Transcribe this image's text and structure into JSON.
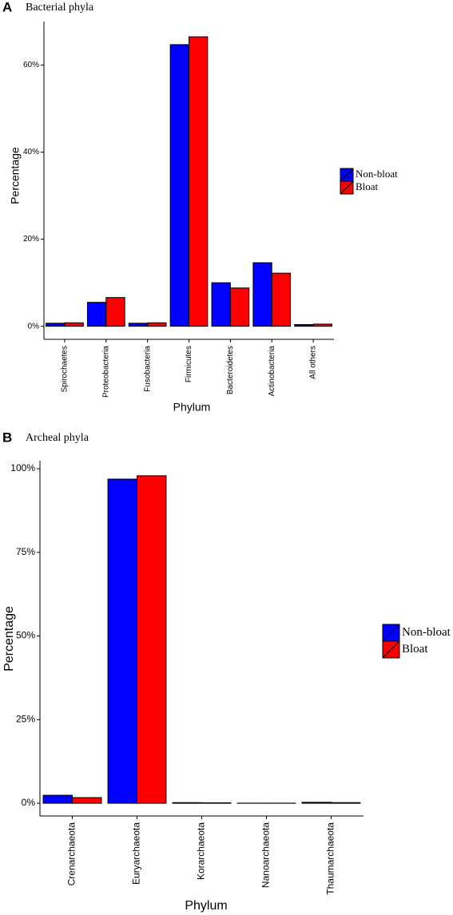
{
  "chart_data": [
    {
      "type": "bar",
      "panel": "A",
      "title": "Bacterial phyla",
      "x_label": "Phylum",
      "y_label": "Percentage",
      "categories": [
        "Spirochaetes",
        "Proteobacteria",
        "Fusobacteria",
        "Firmicutes",
        "Bacteroidetes",
        "Actinobacteria",
        "All others"
      ],
      "series": [
        {
          "name": "Non-bloat",
          "color": "#0000ff",
          "values": [
            0.7,
            5.5,
            0.7,
            64.7,
            10.0,
            14.6,
            0.4
          ]
        },
        {
          "name": "Bloat",
          "color": "#ff0000",
          "values": [
            0.8,
            6.6,
            0.8,
            66.5,
            8.8,
            12.2,
            0.5
          ]
        }
      ],
      "ylim": [
        -3,
        70
      ],
      "yticks": [
        {
          "value": 0,
          "label": "0%"
        },
        {
          "value": 20,
          "label": "20%"
        },
        {
          "value": 40,
          "label": "40%"
        },
        {
          "value": 60,
          "label": "60%"
        }
      ],
      "grid": false,
      "legend": "right"
    },
    {
      "type": "bar",
      "panel": "B",
      "title": "Archeal phyla",
      "x_label": "Phylum",
      "y_label": "Percentage",
      "categories": [
        "Crenarchaeota",
        "Euryarchaeota",
        "Korarchaeota",
        "Nanoarchaeota",
        "Thaumarchaeota"
      ],
      "series": [
        {
          "name": "Non-bloat",
          "color": "#0000ff",
          "values": [
            2.4,
            96.9,
            0.2,
            0.05,
            0.3
          ]
        },
        {
          "name": "Bloat",
          "color": "#ff0000",
          "values": [
            1.7,
            97.9,
            0.15,
            0.05,
            0.2
          ]
        }
      ],
      "ylim": [
        -3.8,
        102.4
      ],
      "yticks": [
        {
          "value": 0,
          "label": "0%"
        },
        {
          "value": 25,
          "label": "25%"
        },
        {
          "value": 50,
          "label": "50%"
        },
        {
          "value": 75,
          "label": "75%"
        },
        {
          "value": 100,
          "label": "100%"
        }
      ],
      "grid": false,
      "legend": "right"
    }
  ]
}
